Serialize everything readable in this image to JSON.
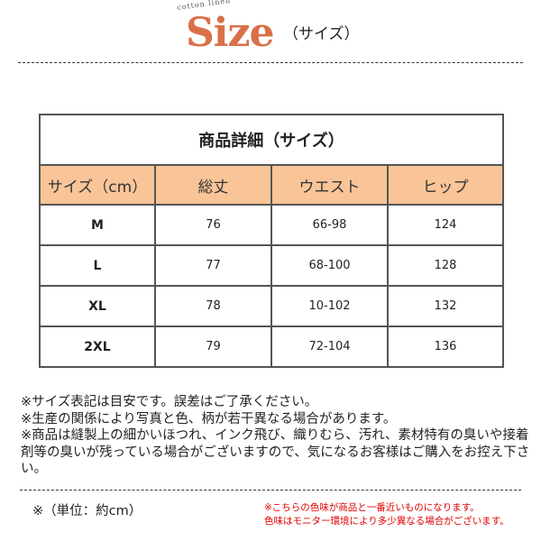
{
  "header": {
    "logo_subtext": "cotton linen",
    "logo_text": "Size",
    "title_suffix": "（サイズ）",
    "accent_color": "#d9704a"
  },
  "table": {
    "title": "商品詳細（サイズ）",
    "header_color": "#f9c598",
    "columns": [
      "サイズ（cm）",
      "総丈",
      "ウエスト",
      "ヒップ"
    ],
    "rows": [
      [
        "M",
        "76",
        "66-98",
        "124"
      ],
      [
        "L",
        "77",
        "68-100",
        "128"
      ],
      [
        "XL",
        "78",
        "10-102",
        "132"
      ],
      [
        "2XL",
        "79",
        "72-104",
        "136"
      ]
    ]
  },
  "notes": [
    "※サイズ表記は目安です。誤差はご了承ください。",
    "※生産の関係により写真と色、柄が若干異なる場合があります。",
    "※商品は縫製上の細かいほつれ、インク飛び、織りむら、汚れ、素材特有の臭いや接着剤等の臭いが残っている場合がございますので、気になるお客様はご購入をお控え下さい。"
  ],
  "unit_note": "※（単位：約cm）",
  "color_notes": [
    "※こちらの色味が商品と一番近いものになります。",
    "色味はモニター環境により多少異なる場合がございます。"
  ]
}
